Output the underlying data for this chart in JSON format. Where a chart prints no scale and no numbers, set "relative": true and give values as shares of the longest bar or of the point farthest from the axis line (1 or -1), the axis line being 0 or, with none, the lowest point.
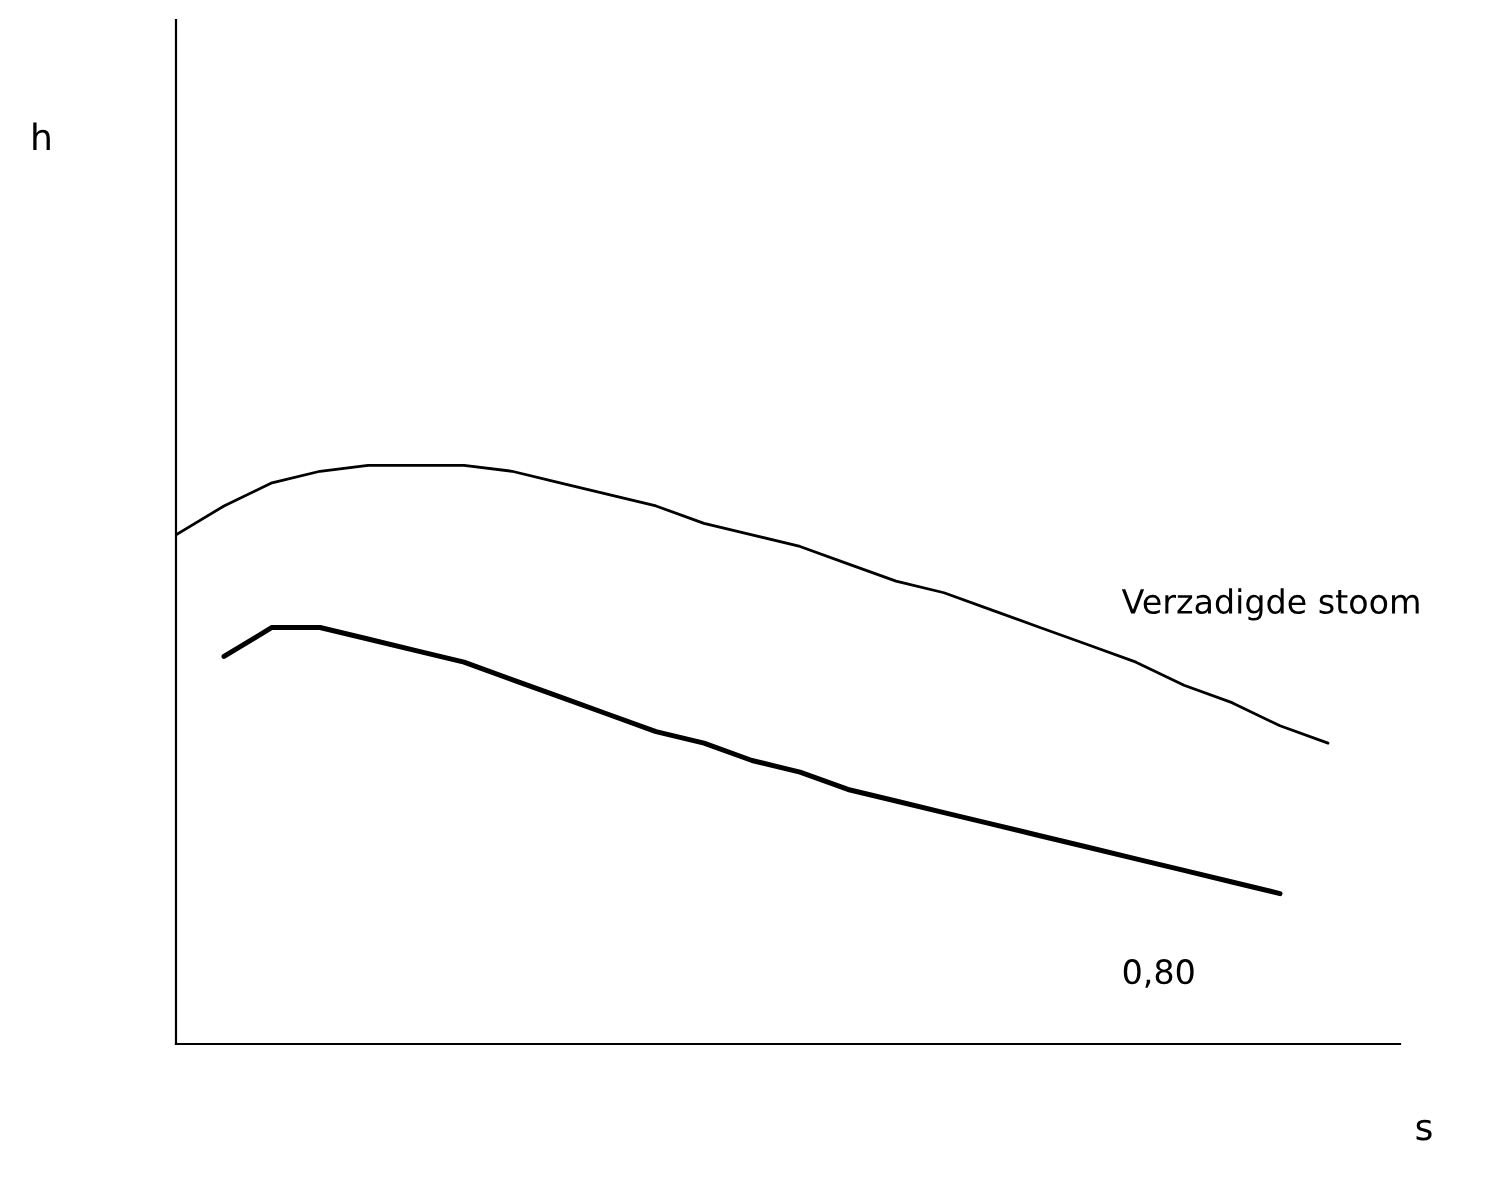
{
  "chart_data": {
    "type": "line",
    "relative": true,
    "xlabel": "s",
    "annotations": [
      "h"
    ],
    "categories": [
      null,
      null,
      null,
      null,
      null,
      null,
      null,
      null,
      null,
      null,
      null,
      null,
      null,
      null,
      null,
      null,
      null,
      null,
      null,
      null,
      null,
      null,
      null,
      null,
      null
    ],
    "series": [
      {
        "name": "Verzadigde stoom",
        "color": "#000000",
        "values": [
          0.88,
          0.93,
          0.97,
          0.99,
          1.0,
          1.0,
          1.0,
          0.99,
          0.97,
          0.95,
          0.93,
          0.9,
          0.88,
          0.86,
          0.83,
          0.8,
          0.78,
          0.75,
          0.72,
          0.69,
          0.66,
          0.62,
          0.59,
          0.55,
          0.52
        ]
      },
      {
        "name": "0,80",
        "color": "#000000",
        "values": [
          null,
          0.67,
          0.72,
          0.72,
          0.7,
          0.68,
          0.66,
          0.63,
          0.6,
          0.57,
          0.54,
          0.52,
          0.49,
          0.47,
          0.44,
          0.42,
          0.4,
          0.38,
          0.36,
          0.34,
          0.32,
          0.3,
          0.28,
          0.26,
          null
        ]
      }
    ],
    "grid": false,
    "legend": false,
    "marker": "none",
    "line_style": "solid"
  }
}
